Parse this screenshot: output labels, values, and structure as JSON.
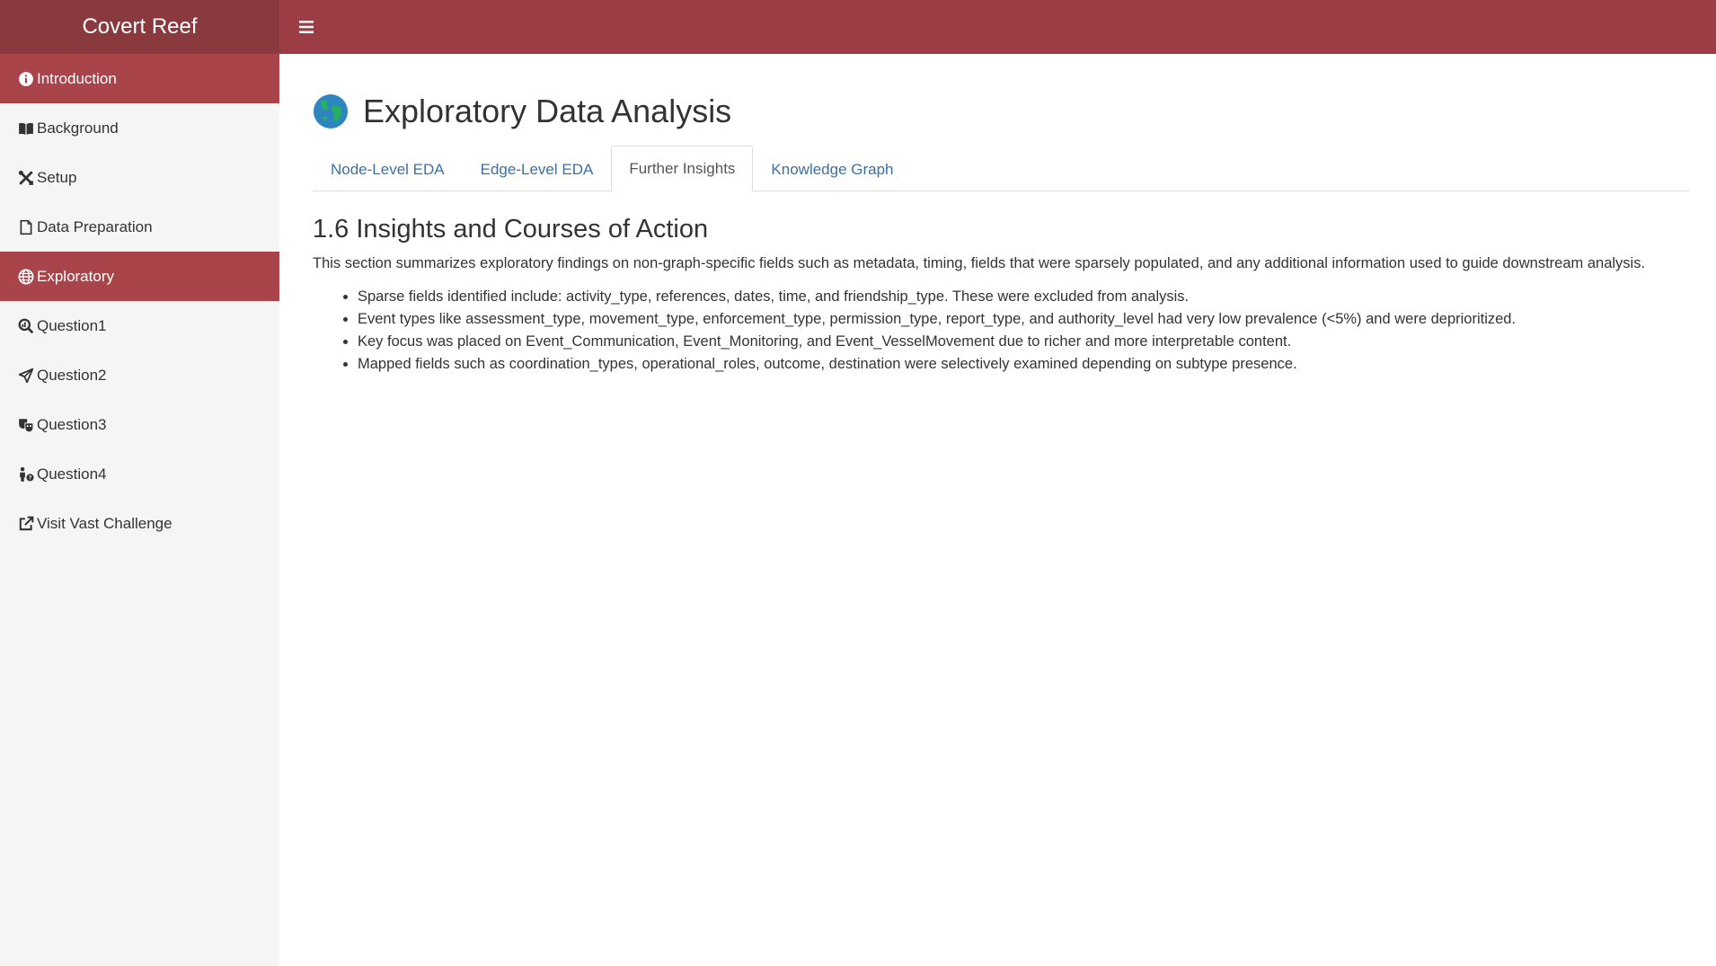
{
  "app": {
    "title": "Covert Reef"
  },
  "sidebar": {
    "items": [
      {
        "label": "Introduction",
        "icon": "info-circle-icon",
        "active": true
      },
      {
        "label": "Background",
        "icon": "book-open-icon",
        "active": false
      },
      {
        "label": "Setup",
        "icon": "tools-icon",
        "active": false
      },
      {
        "label": "Data Preparation",
        "icon": "file-icon",
        "active": false
      },
      {
        "label": "Exploratory",
        "icon": "globe-icon",
        "active": true
      },
      {
        "label": "Question1",
        "icon": "search-chart-icon",
        "active": false
      },
      {
        "label": "Question2",
        "icon": "send-icon",
        "active": false
      },
      {
        "label": "Question3",
        "icon": "masks-icon",
        "active": false
      },
      {
        "label": "Question4",
        "icon": "person-question-icon",
        "active": false
      },
      {
        "label": "Visit Vast Challenge",
        "icon": "external-link-icon",
        "active": false
      }
    ]
  },
  "main": {
    "title": "Exploratory Data Analysis",
    "tabs": [
      {
        "label": "Node-Level EDA",
        "active": false
      },
      {
        "label": "Edge-Level EDA",
        "active": false
      },
      {
        "label": "Further Insights",
        "active": true
      },
      {
        "label": "Knowledge Graph",
        "active": false
      }
    ],
    "section_heading": "1.6 Insights and Courses of Action",
    "summary": "This section summarizes exploratory findings on non-graph-specific fields such as metadata, timing, fields that were sparsely populated, and any additional information used to guide downstream analysis.",
    "findings": [
      "Sparse fields identified include: activity_type, references, dates, time, and friendship_type. These were excluded from analysis.",
      "Event types like assessment_type, movement_type, enforcement_type, permission_type, report_type, and authority_level had very low prevalence (<5%) and were deprioritized.",
      "Key focus was placed on Event_Communication, Event_Monitoring, and Event_VesselMovement due to richer and more interpretable content.",
      "Mapped fields such as coordination_types, operational_roles, outcome, destination were selectively examined depending on subtype presence."
    ]
  },
  "colors": {
    "brand_bg": "#8a3a3f",
    "topbar_bg": "#9c3d46",
    "active_item_bg": "#a8444a",
    "sidebar_bg": "#f5f5f5",
    "tab_link": "#3b6fa8"
  }
}
